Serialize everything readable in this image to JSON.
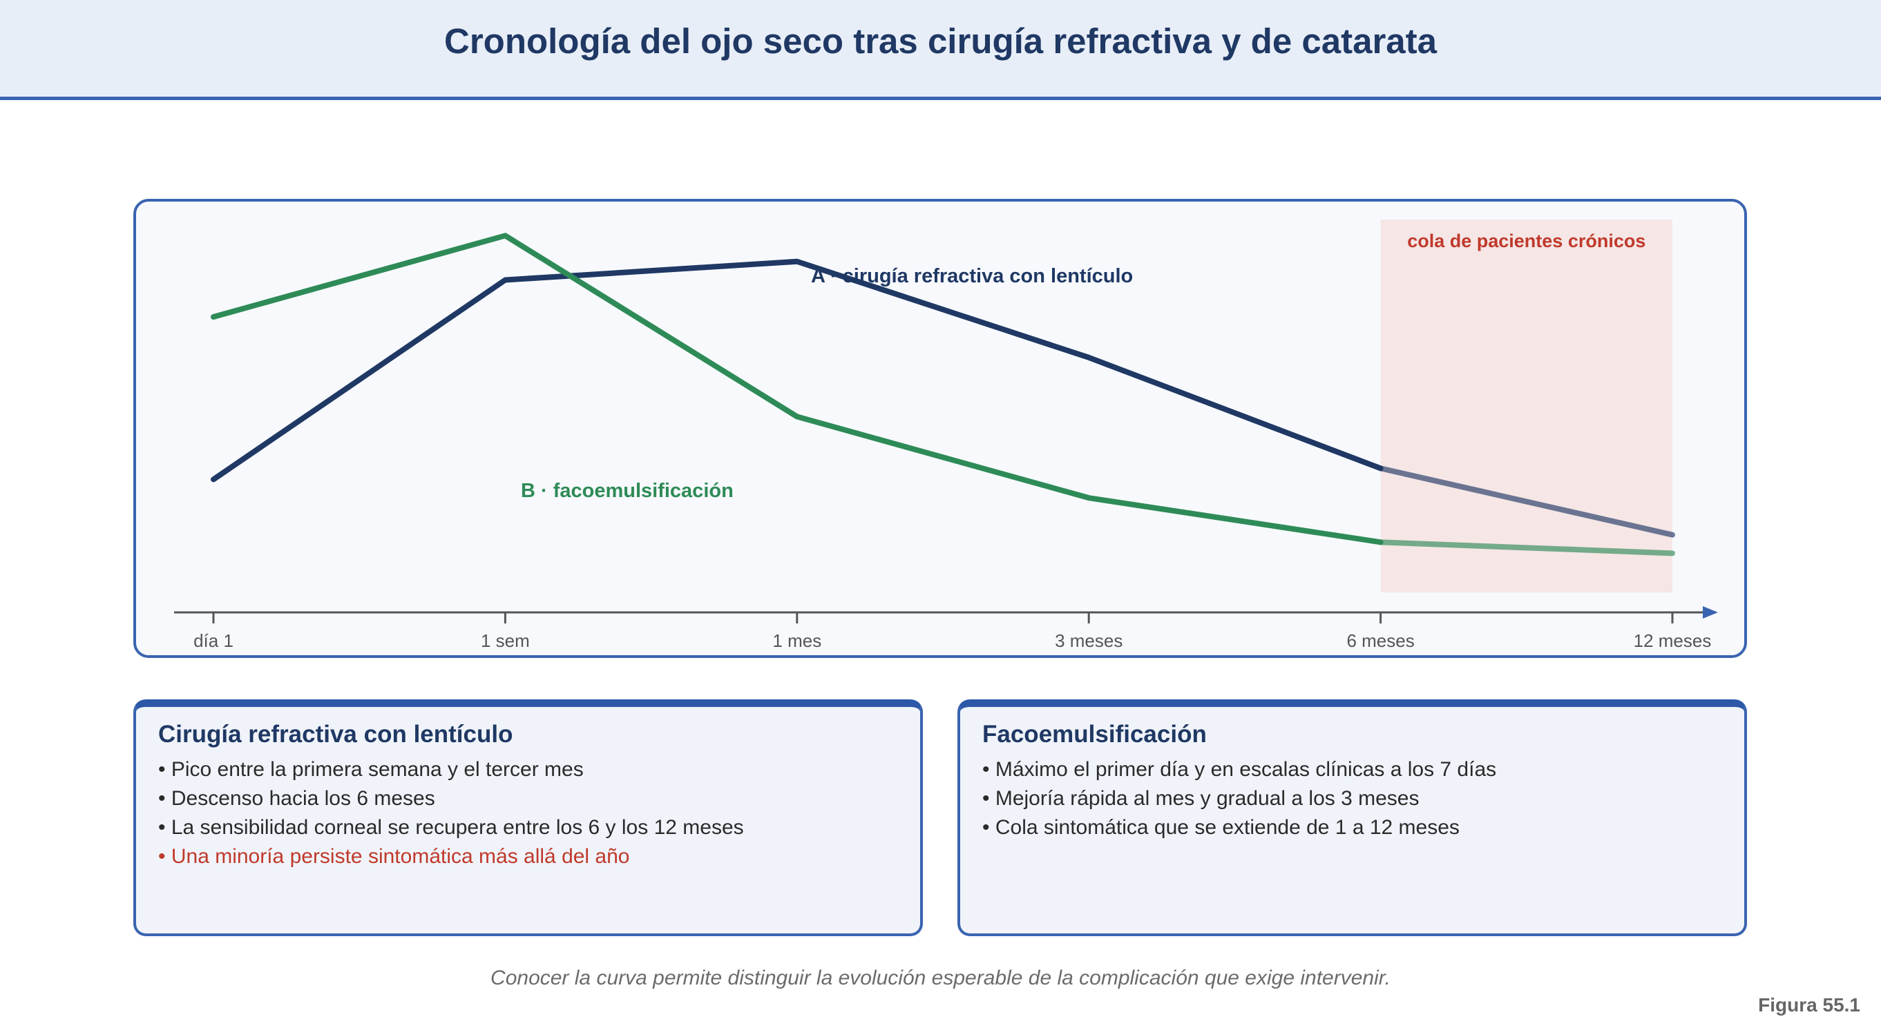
{
  "title": "Cronología del ojo seco tras cirugía refractiva y de catarata",
  "chart_data": {
    "type": "line",
    "categories": [
      "día 1",
      "1 sem",
      "1 mes",
      "3 meses",
      "6 meses",
      "12 meses"
    ],
    "ylim": [
      0,
      10
    ],
    "series": [
      {
        "name": "A · cirugía refractiva con lentículo",
        "color": "#1f3864",
        "values": [
          3.6,
          9.0,
          9.5,
          6.9,
          3.9,
          2.1
        ]
      },
      {
        "name": "B · facoemulsificación",
        "color": "#2e8b57",
        "values": [
          8.0,
          10.2,
          5.3,
          3.1,
          1.9,
          1.6
        ]
      }
    ],
    "shaded_region": {
      "from": "6 meses",
      "to": "12 meses",
      "label": "cola de pacientes crónicos",
      "color": "#f6e6e6"
    },
    "grid": false
  },
  "cards": [
    {
      "title": "Cirugía refractiva con lentículo",
      "items": [
        "• Pico entre la primera semana y el tercer mes",
        "• Descenso hacia los 6 meses",
        "• La sensibilidad corneal se recupera entre los 6 y los 12 meses"
      ],
      "warning": "• Una minoría persiste sintomática más allá del año"
    },
    {
      "title": "Facoemulsificación",
      "items": [
        "• Máximo el primer día y en escalas clínicas a los 7 días",
        "• Mejoría rápida al mes y gradual a los 3 meses",
        "• Cola sintomática que se extiende de 1 a 12 meses"
      ]
    }
  ],
  "footer": "Conocer la curva permite distinguir la evolución esperable de la complicación que exige intervenir.",
  "figure_label": "Figura 55.1"
}
